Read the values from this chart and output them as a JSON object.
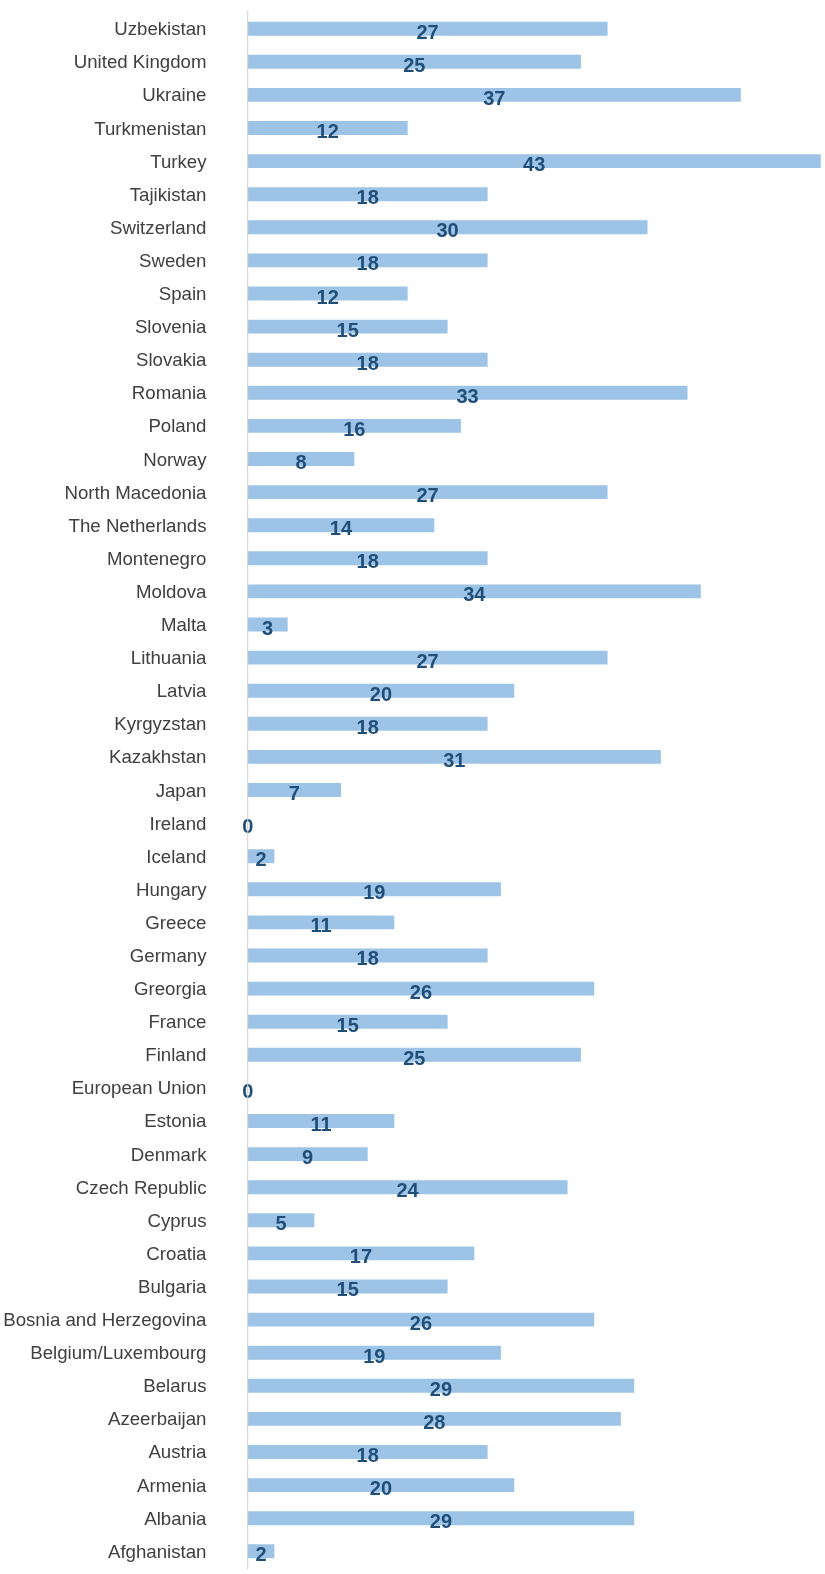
{
  "chart_data": {
    "type": "bar",
    "orientation": "horizontal",
    "categories": [
      "Uzbekistan",
      "United Kingdom",
      "Ukraine",
      "Turkmenistan",
      "Turkey",
      "Tajikistan",
      "Switzerland",
      "Sweden",
      "Spain",
      "Slovenia",
      "Slovakia",
      "Romania",
      "Poland",
      "Norway",
      "North Macedonia",
      "The Netherlands",
      "Montenegro",
      "Moldova",
      "Malta",
      "Lithuania",
      "Latvia",
      "Kyrgyzstan",
      "Kazakhstan",
      "Japan",
      "Ireland",
      "Iceland",
      "Hungary",
      "Greece",
      "Germany",
      "Greorgia",
      "France",
      "Finland",
      "European Union",
      "Estonia",
      "Denmark",
      "Czech Republic",
      "Cyprus",
      "Croatia",
      "Bulgaria",
      "Bosnia and Herzegovina",
      "Belgium/Luxembourg",
      "Belarus",
      "Azeerbaijan",
      "Austria",
      "Armenia",
      "Albania",
      "Afghanistan"
    ],
    "values": [
      27,
      25,
      37,
      12,
      43,
      18,
      30,
      18,
      12,
      15,
      18,
      33,
      16,
      8,
      27,
      14,
      18,
      34,
      3,
      27,
      20,
      18,
      31,
      7,
      0,
      2,
      19,
      11,
      18,
      26,
      15,
      25,
      0,
      11,
      9,
      24,
      5,
      17,
      15,
      26,
      19,
      29,
      28,
      18,
      20,
      29,
      2
    ],
    "color": "#9dc3e6",
    "data_labels": true,
    "grid": false,
    "tick_labels": "y"
  }
}
